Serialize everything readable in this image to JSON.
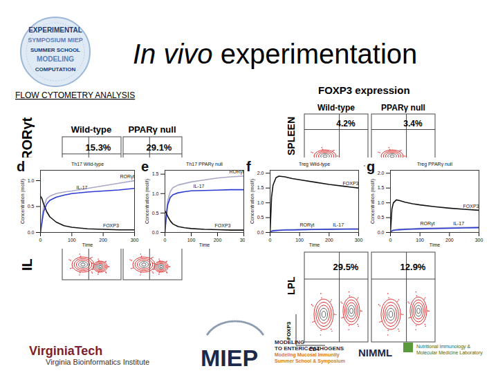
{
  "title": [
    "In vivo",
    "experimentation"
  ],
  "section": "FLOW CYTOMETRY ANALYSIS",
  "logo_words": [
    "EXPERIMENTAL",
    "SYMPOSIUM MIEP",
    "SUMMER SCHOOL",
    "MODELING",
    "COMPUTATION"
  ],
  "flow_left": {
    "columns": [
      "Wild-type",
      "PPARγ null"
    ],
    "percentages": [
      "15.3%",
      "29.1%"
    ],
    "y_label_top": "RORγt",
    "y_label_bottom": "IL"
  },
  "flow_right": {
    "heading": "FOXP3 expression",
    "columns": [
      "Wild-type",
      "PPARγ null"
    ],
    "rows": [
      {
        "label": "SPLEEN",
        "percentages": [
          "4.2%",
          "3.4%"
        ]
      },
      {
        "label": "LPL",
        "percentages": [
          "29.5%",
          "12.9%"
        ]
      }
    ],
    "y_axis": "FOXP3",
    "x_axis": "CD4"
  },
  "footer": {
    "vt": "VirginiaTech",
    "vt_sub": "Virginia Bioinformatics Institute",
    "miep": "MIEP",
    "modeling": [
      "MODELING",
      "TO ENTERIC PATHOGENS",
      "Modeling Mucosal Immunity",
      "Summer School & Symposium"
    ],
    "nimml": "NIMML",
    "nimml_sub": [
      "Nutritional Immunology &",
      "Molecular Medicine Laboratory"
    ]
  },
  "chart_data": [
    {
      "type": "line",
      "panel": "d",
      "title": "Th17 Wild-type",
      "x_label": "Time",
      "y_label": "Concentration (mol/l)",
      "x": [
        0,
        5,
        10,
        20,
        30,
        50,
        75,
        100,
        150,
        200,
        250,
        300
      ],
      "xlim": [
        0,
        300
      ],
      "xticks": [
        0,
        100,
        200,
        300
      ],
      "ylim": [
        0,
        1.2
      ],
      "yticks": [
        {
          "value": 0,
          "label": "0.0"
        },
        {
          "value": 0.5,
          "label": "0.5"
        },
        {
          "value": 1,
          "label": "1.0"
        }
      ],
      "series": [
        {
          "name": "RORγt",
          "color": "#a8a8c8",
          "values": [
            0,
            0.3,
            0.5,
            0.65,
            0.7,
            0.75,
            0.78,
            0.8,
            0.85,
            0.9,
            0.95,
            1.0
          ]
        },
        {
          "name": "IL-17",
          "color": "#2b3bd1",
          "values": [
            0,
            0.2,
            0.4,
            0.55,
            0.62,
            0.68,
            0.72,
            0.75,
            0.78,
            0.8,
            0.82,
            0.85
          ]
        },
        {
          "name": "FOXP3",
          "color": "#111111",
          "values": [
            0.7,
            0.65,
            0.55,
            0.4,
            0.3,
            0.2,
            0.13,
            0.1,
            0.07,
            0.06,
            0.05,
            0.05
          ]
        }
      ]
    },
    {
      "type": "line",
      "panel": "e",
      "title": "Th17 PPARγ null",
      "x_label": "Time",
      "y_label": "Concentration (mol/l)",
      "x": [
        0,
        5,
        10,
        20,
        30,
        50,
        75,
        100,
        150,
        200,
        250,
        300
      ],
      "xlim": [
        0,
        300
      ],
      "xticks": [
        0,
        100,
        200,
        300
      ],
      "ylim": [
        0,
        1.6
      ],
      "yticks": [
        {
          "value": 0,
          "label": "0.0"
        },
        {
          "value": 0.5,
          "label": "0.5"
        },
        {
          "value": 1,
          "label": "1.0"
        },
        {
          "value": 1.5,
          "label": "1.5"
        }
      ],
      "series": [
        {
          "name": "RORγt",
          "color": "#a8a8c8",
          "values": [
            0,
            0.5,
            0.8,
            1.05,
            1.15,
            1.22,
            1.26,
            1.3,
            1.35,
            1.4,
            1.43,
            1.45
          ]
        },
        {
          "name": "IL-17",
          "color": "#2b3bd1",
          "values": [
            0,
            0.4,
            0.7,
            0.9,
            0.97,
            1.02,
            1.05,
            1.07,
            1.08,
            1.09,
            1.1,
            1.1
          ]
        },
        {
          "name": "FOXP3",
          "color": "#111111",
          "values": [
            0.55,
            0.5,
            0.42,
            0.3,
            0.22,
            0.15,
            0.12,
            0.1,
            0.08,
            0.07,
            0.06,
            0.06
          ]
        }
      ]
    },
    {
      "type": "line",
      "panel": "f",
      "title": "Treg Wild-type",
      "x_label": "Time",
      "y_label": "Concentration (mol/l)",
      "x": [
        0,
        5,
        10,
        20,
        30,
        50,
        75,
        100,
        150,
        200,
        250,
        300
      ],
      "xlim": [
        0,
        300
      ],
      "xticks": [
        0,
        100,
        200,
        300
      ],
      "ylim": [
        0,
        2.1
      ],
      "yticks": [
        {
          "value": 0,
          "label": "0.0"
        },
        {
          "value": 0.5,
          "label": "0.5"
        },
        {
          "value": 1,
          "label": "1.0"
        },
        {
          "value": 1.5,
          "label": "1.5"
        },
        {
          "value": 2,
          "label": "2.0"
        }
      ],
      "series": [
        {
          "name": "FOXP3",
          "color": "#111111",
          "values": [
            0,
            1.2,
            1.6,
            1.85,
            1.9,
            1.88,
            1.82,
            1.78,
            1.7,
            1.62,
            1.56,
            1.5
          ]
        },
        {
          "name": "RORγt",
          "color": "#a8a8c8",
          "values": [
            0,
            0.05,
            0.07,
            0.08,
            0.08,
            0.09,
            0.1,
            0.1,
            0.11,
            0.12,
            0.12,
            0.13
          ]
        },
        {
          "name": "IL-17",
          "color": "#2b3bd1",
          "values": [
            0,
            0.04,
            0.05,
            0.06,
            0.07,
            0.08,
            0.08,
            0.09,
            0.1,
            0.1,
            0.11,
            0.11
          ]
        }
      ]
    },
    {
      "type": "line",
      "panel": "g",
      "title": "Treg PPARγ null",
      "x_label": "Time",
      "y_label": "Concentration (mol/l)",
      "x": [
        0,
        5,
        10,
        20,
        30,
        50,
        75,
        100,
        150,
        200,
        250,
        300
      ],
      "xlim": [
        0,
        300
      ],
      "xticks": [
        0,
        100,
        200,
        300
      ],
      "ylim": [
        0,
        2.1
      ],
      "yticks": [
        {
          "value": 0,
          "label": "0.0"
        },
        {
          "value": 0.5,
          "label": "0.5"
        },
        {
          "value": 1,
          "label": "1.0"
        },
        {
          "value": 1.5,
          "label": "1.5"
        },
        {
          "value": 2,
          "label": "2.0"
        }
      ],
      "series": [
        {
          "name": "FOXP3",
          "color": "#111111",
          "values": [
            0,
            0.8,
            1.0,
            1.1,
            1.08,
            1.02,
            0.97,
            0.93,
            0.87,
            0.82,
            0.78,
            0.75
          ]
        },
        {
          "name": "RORγt",
          "color": "#a8a8c8",
          "values": [
            0,
            0.06,
            0.08,
            0.1,
            0.11,
            0.12,
            0.13,
            0.14,
            0.15,
            0.16,
            0.17,
            0.18
          ]
        },
        {
          "name": "IL-17",
          "color": "#2b3bd1",
          "values": [
            0,
            0.05,
            0.07,
            0.08,
            0.09,
            0.1,
            0.11,
            0.12,
            0.13,
            0.14,
            0.15,
            0.16
          ]
        }
      ]
    }
  ]
}
